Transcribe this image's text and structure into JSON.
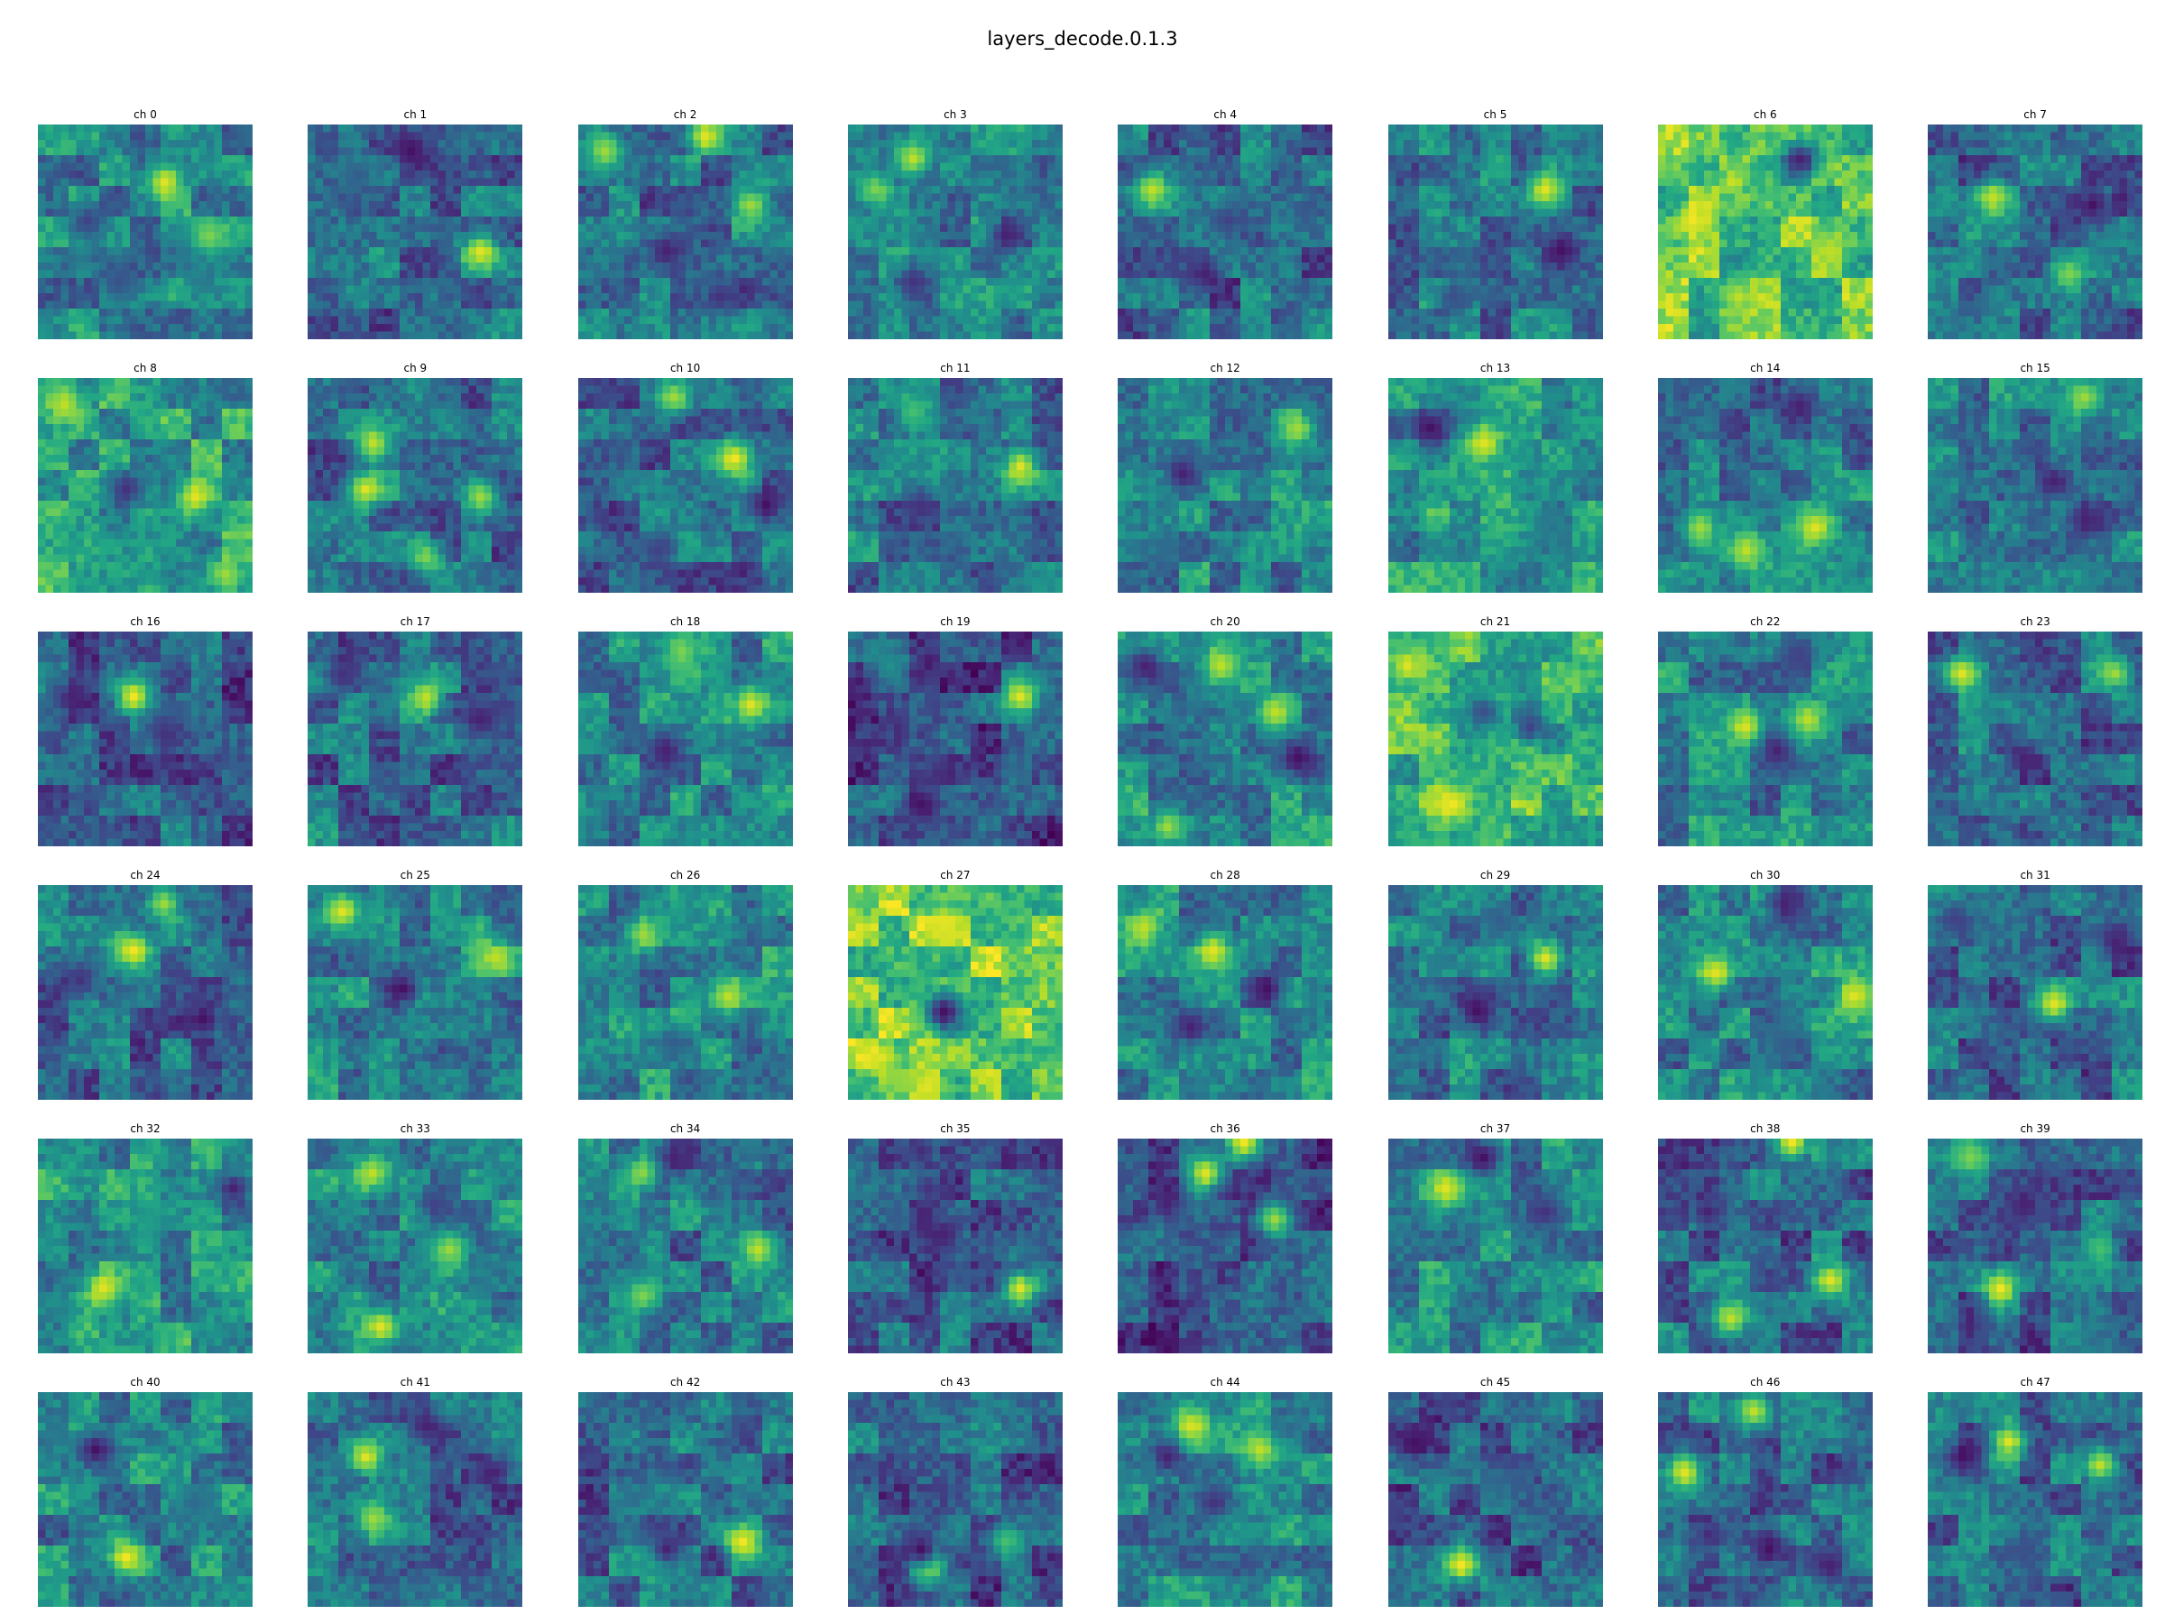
{
  "figure": {
    "title": "layers_decode.0.1.3"
  },
  "chart_data": {
    "type": "heatmap",
    "colormap": "viridis",
    "grid_rows": 6,
    "grid_cols": 8,
    "map_size": 28,
    "panels": [
      {
        "label": "ch 0",
        "seed": 11,
        "base": 0.45,
        "spots": [
          [
            7,
            16,
            0.95
          ],
          [
            12,
            6,
            0.2
          ],
          [
            20,
            10,
            0.25
          ],
          [
            14,
            22,
            0.8
          ]
        ]
      },
      {
        "label": "ch 1",
        "seed": 23,
        "base": 0.35,
        "spots": [
          [
            3,
            13,
            0.05
          ],
          [
            16,
            22,
            0.95
          ],
          [
            6,
            6,
            0.3
          ]
        ]
      },
      {
        "label": "ch 2",
        "seed": 37,
        "base": 0.35,
        "spots": [
          [
            1,
            16,
            0.95
          ],
          [
            3,
            3,
            0.85
          ],
          [
            10,
            22,
            0.85
          ],
          [
            16,
            11,
            0.1
          ],
          [
            22,
            18,
            0.15
          ]
        ]
      },
      {
        "label": "ch 3",
        "seed": 41,
        "base": 0.45,
        "spots": [
          [
            4,
            8,
            0.9
          ],
          [
            14,
            20,
            0.1
          ],
          [
            20,
            8,
            0.15
          ],
          [
            8,
            3,
            0.8
          ]
        ]
      },
      {
        "label": "ch 4",
        "seed": 53,
        "base": 0.35,
        "spots": [
          [
            8,
            4,
            0.9
          ],
          [
            19,
            11,
            0.1
          ],
          [
            12,
            14,
            0.2
          ]
        ]
      },
      {
        "label": "ch 5",
        "seed": 61,
        "base": 0.4,
        "spots": [
          [
            8,
            20,
            0.95
          ],
          [
            16,
            22,
            0.05
          ],
          [
            22,
            8,
            0.25
          ]
        ]
      },
      {
        "label": "ch 6",
        "seed": 73,
        "base": 0.7,
        "spots": [
          [
            12,
            4,
            0.98
          ],
          [
            4,
            18,
            0.1
          ],
          [
            22,
            10,
            0.9
          ],
          [
            16,
            22,
            0.9
          ]
        ]
      },
      {
        "label": "ch 7",
        "seed": 89,
        "base": 0.35,
        "spots": [
          [
            9,
            8,
            0.9
          ],
          [
            10,
            21,
            0.05
          ],
          [
            19,
            18,
            0.8
          ]
        ]
      },
      {
        "label": "ch 8",
        "seed": 97,
        "base": 0.55,
        "spots": [
          [
            3,
            3,
            0.9
          ],
          [
            15,
            20,
            0.95
          ],
          [
            14,
            11,
            0.15
          ],
          [
            25,
            24,
            0.85
          ]
        ]
      },
      {
        "label": "ch 9",
        "seed": 101,
        "base": 0.35,
        "spots": [
          [
            8,
            8,
            0.9
          ],
          [
            14,
            7,
            0.95
          ],
          [
            15,
            22,
            0.85
          ],
          [
            23,
            15,
            0.8
          ]
        ]
      },
      {
        "label": "ch 10",
        "seed": 113,
        "base": 0.35,
        "spots": [
          [
            10,
            20,
            0.98
          ],
          [
            16,
            24,
            0.05
          ],
          [
            2,
            12,
            0.85
          ],
          [
            22,
            10,
            0.2
          ]
        ]
      },
      {
        "label": "ch 11",
        "seed": 127,
        "base": 0.4,
        "spots": [
          [
            11,
            22,
            0.95
          ],
          [
            16,
            9,
            0.15
          ],
          [
            4,
            8,
            0.7
          ]
        ]
      },
      {
        "label": "ch 12",
        "seed": 131,
        "base": 0.45,
        "spots": [
          [
            6,
            23,
            0.85
          ],
          [
            12,
            8,
            0.1
          ],
          [
            22,
            6,
            0.35
          ]
        ]
      },
      {
        "label": "ch 13",
        "seed": 139,
        "base": 0.5,
        "spots": [
          [
            8,
            12,
            0.95
          ],
          [
            6,
            5,
            0.05
          ],
          [
            18,
            20,
            0.4
          ]
        ]
      },
      {
        "label": "ch 14",
        "seed": 151,
        "base": 0.4,
        "spots": [
          [
            19,
            20,
            0.95
          ],
          [
            22,
            11,
            0.9
          ],
          [
            3,
            18,
            0.1
          ],
          [
            19,
            5,
            0.85
          ]
        ]
      },
      {
        "label": "ch 15",
        "seed": 157,
        "base": 0.4,
        "spots": [
          [
            13,
            16,
            0.1
          ],
          [
            18,
            20,
            0.1
          ],
          [
            2,
            20,
            0.85
          ]
        ]
      },
      {
        "label": "ch 16",
        "seed": 163,
        "base": 0.3,
        "spots": [
          [
            8,
            12,
            0.98
          ],
          [
            8,
            4,
            0.1
          ],
          [
            13,
            16,
            0.15
          ]
        ]
      },
      {
        "label": "ch 17",
        "seed": 167,
        "base": 0.35,
        "spots": [
          [
            8,
            15,
            0.9
          ],
          [
            11,
            22,
            0.1
          ],
          [
            5,
            4,
            0.15
          ]
        ]
      },
      {
        "label": "ch 18",
        "seed": 173,
        "base": 0.45,
        "spots": [
          [
            9,
            22,
            0.95
          ],
          [
            15,
            11,
            0.1
          ],
          [
            2,
            13,
            0.8
          ]
        ]
      },
      {
        "label": "ch 19",
        "seed": 179,
        "base": 0.25,
        "spots": [
          [
            8,
            22,
            0.95
          ],
          [
            22,
            9,
            0.05
          ],
          [
            4,
            5,
            0.5
          ]
        ]
      },
      {
        "label": "ch 20",
        "seed": 181,
        "base": 0.45,
        "spots": [
          [
            4,
            13,
            0.9
          ],
          [
            16,
            23,
            0.05
          ],
          [
            4,
            3,
            0.1
          ],
          [
            10,
            20,
            0.9
          ],
          [
            25,
            6,
            0.85
          ]
        ]
      },
      {
        "label": "ch 21",
        "seed": 191,
        "base": 0.65,
        "spots": [
          [
            22,
            8,
            0.98
          ],
          [
            4,
            2,
            0.95
          ],
          [
            12,
            18,
            0.2
          ],
          [
            10,
            12,
            0.25
          ]
        ]
      },
      {
        "label": "ch 22",
        "seed": 193,
        "base": 0.45,
        "spots": [
          [
            12,
            11,
            0.95
          ],
          [
            11,
            19,
            0.9
          ],
          [
            15,
            15,
            0.1
          ],
          [
            3,
            18,
            0.2
          ]
        ]
      },
      {
        "label": "ch 23",
        "seed": 197,
        "base": 0.35,
        "spots": [
          [
            5,
            4,
            0.95
          ],
          [
            5,
            24,
            0.85
          ],
          [
            16,
            12,
            0.1
          ]
        ]
      },
      {
        "label": "ch 24",
        "seed": 199,
        "base": 0.35,
        "spots": [
          [
            8,
            12,
            0.98
          ],
          [
            17,
            21,
            0.05
          ],
          [
            12,
            5,
            0.15
          ],
          [
            2,
            16,
            0.85
          ]
        ]
      },
      {
        "label": "ch 25",
        "seed": 211,
        "base": 0.45,
        "spots": [
          [
            3,
            4,
            0.95
          ],
          [
            9,
            24,
            0.9
          ],
          [
            13,
            12,
            0.05
          ]
        ]
      },
      {
        "label": "ch 26",
        "seed": 223,
        "base": 0.45,
        "spots": [
          [
            14,
            19,
            0.9
          ],
          [
            6,
            8,
            0.85
          ],
          [
            20,
            12,
            0.3
          ]
        ]
      },
      {
        "label": "ch 27",
        "seed": 227,
        "base": 0.75,
        "spots": [
          [
            16,
            12,
            0.05
          ],
          [
            22,
            4,
            0.95
          ],
          [
            26,
            10,
            0.95
          ],
          [
            5,
            12,
            0.95
          ]
        ]
      },
      {
        "label": "ch 28",
        "seed": 229,
        "base": 0.45,
        "spots": [
          [
            8,
            12,
            0.95
          ],
          [
            5,
            3,
            0.9
          ],
          [
            13,
            19,
            0.05
          ],
          [
            18,
            9,
            0.1
          ]
        ]
      },
      {
        "label": "ch 29",
        "seed": 233,
        "base": 0.4,
        "spots": [
          [
            9,
            20,
            0.95
          ],
          [
            16,
            11,
            0.05
          ],
          [
            4,
            14,
            0.3
          ]
        ]
      },
      {
        "label": "ch 30",
        "seed": 239,
        "base": 0.45,
        "spots": [
          [
            11,
            7,
            0.95
          ],
          [
            14,
            25,
            0.95
          ],
          [
            2,
            16,
            0.1
          ],
          [
            20,
            16,
            0.3
          ]
        ]
      },
      {
        "label": "ch 31",
        "seed": 241,
        "base": 0.35,
        "spots": [
          [
            15,
            16,
            0.95
          ],
          [
            7,
            24,
            0.1
          ],
          [
            4,
            3,
            0.2
          ]
        ]
      },
      {
        "label": "ch 32",
        "seed": 251,
        "base": 0.5,
        "spots": [
          [
            19,
            8,
            0.95
          ],
          [
            6,
            25,
            0.1
          ],
          [
            10,
            14,
            0.55
          ]
        ]
      },
      {
        "label": "ch 33",
        "seed": 257,
        "base": 0.45,
        "spots": [
          [
            24,
            9,
            0.95
          ],
          [
            4,
            8,
            0.9
          ],
          [
            14,
            18,
            0.85
          ],
          [
            8,
            16,
            0.2
          ]
        ]
      },
      {
        "label": "ch 34",
        "seed": 263,
        "base": 0.4,
        "spots": [
          [
            14,
            23,
            0.9
          ],
          [
            4,
            8,
            0.85
          ],
          [
            2,
            12,
            0.1
          ],
          [
            20,
            8,
            0.8
          ]
        ]
      },
      {
        "label": "ch 35",
        "seed": 269,
        "base": 0.3,
        "spots": [
          [
            19,
            22,
            0.95
          ],
          [
            12,
            12,
            0.1
          ],
          [
            6,
            10,
            0.15
          ]
        ]
      },
      {
        "label": "ch 36",
        "seed": 271,
        "base": 0.25,
        "spots": [
          [
            0,
            16,
            0.98
          ],
          [
            4,
            11,
            0.95
          ],
          [
            10,
            20,
            0.85
          ],
          [
            8,
            6,
            0.1
          ]
        ]
      },
      {
        "label": "ch 37",
        "seed": 277,
        "base": 0.45,
        "spots": [
          [
            6,
            7,
            0.95
          ],
          [
            2,
            12,
            0.05
          ],
          [
            9,
            20,
            0.15
          ]
        ]
      },
      {
        "label": "ch 38",
        "seed": 281,
        "base": 0.35,
        "spots": [
          [
            0,
            17,
            0.98
          ],
          [
            18,
            22,
            0.95
          ],
          [
            23,
            9,
            0.9
          ],
          [
            9,
            6,
            0.1
          ]
        ]
      },
      {
        "label": "ch 39",
        "seed": 283,
        "base": 0.3,
        "spots": [
          [
            19,
            9,
            0.98
          ],
          [
            2,
            5,
            0.8
          ],
          [
            8,
            12,
            0.1
          ],
          [
            14,
            22,
            0.7
          ]
        ]
      },
      {
        "label": "ch 40",
        "seed": 293,
        "base": 0.45,
        "spots": [
          [
            7,
            7,
            0.05
          ],
          [
            21,
            11,
            0.98
          ],
          [
            14,
            20,
            0.35
          ]
        ]
      },
      {
        "label": "ch 41",
        "seed": 307,
        "base": 0.35,
        "spots": [
          [
            8,
            7,
            0.95
          ],
          [
            10,
            24,
            0.1
          ],
          [
            4,
            15,
            0.1
          ],
          [
            16,
            8,
            0.85
          ]
        ]
      },
      {
        "label": "ch 42",
        "seed": 311,
        "base": 0.35,
        "spots": [
          [
            19,
            21,
            0.98
          ],
          [
            21,
            10,
            0.85
          ],
          [
            20,
            11,
            0.1
          ]
        ]
      },
      {
        "label": "ch 43",
        "seed": 313,
        "base": 0.3,
        "spots": [
          [
            22,
            10,
            0.98
          ],
          [
            20,
            9,
            0.05
          ],
          [
            19,
            20,
            0.7
          ]
        ]
      },
      {
        "label": "ch 44",
        "seed": 317,
        "base": 0.45,
        "spots": [
          [
            4,
            9,
            0.95
          ],
          [
            7,
            18,
            0.9
          ],
          [
            14,
            12,
            0.15
          ],
          [
            8,
            6,
            0.1
          ]
        ]
      },
      {
        "label": "ch 45",
        "seed": 331,
        "base": 0.3,
        "spots": [
          [
            22,
            9,
            0.98
          ],
          [
            6,
            3,
            0.05
          ],
          [
            12,
            14,
            0.35
          ]
        ]
      },
      {
        "label": "ch 46",
        "seed": 337,
        "base": 0.35,
        "spots": [
          [
            10,
            3,
            0.95
          ],
          [
            2,
            12,
            0.9
          ],
          [
            20,
            14,
            0.05
          ],
          [
            22,
            22,
            0.1
          ]
        ]
      },
      {
        "label": "ch 47",
        "seed": 347,
        "base": 0.35,
        "spots": [
          [
            6,
            10,
            0.95
          ],
          [
            8,
            4,
            0.05
          ],
          [
            9,
            22,
            0.9
          ],
          [
            20,
            12,
            0.25
          ]
        ]
      }
    ]
  }
}
